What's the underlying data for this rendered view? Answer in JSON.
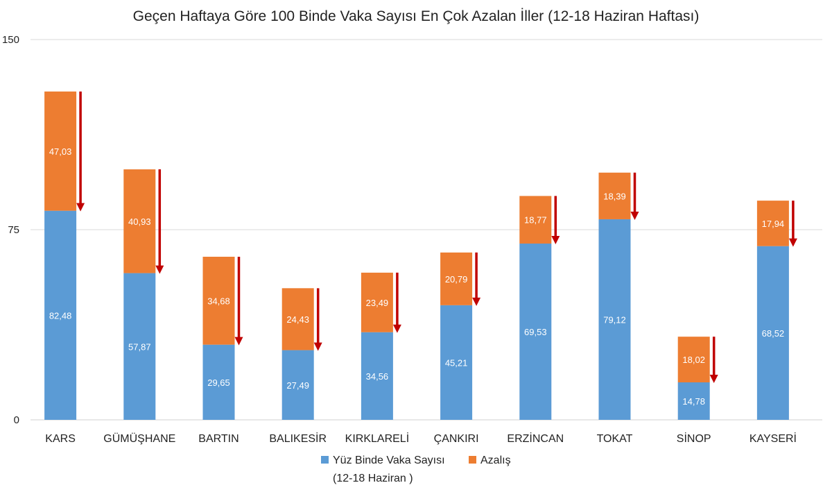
{
  "chart_data": {
    "type": "bar",
    "stacked": true,
    "title": "Geçen Haftaya Göre 100 Binde Vaka Sayısı En Çok Azalan İller (12-18 Haziran Haftası)",
    "xlabel": "",
    "ylabel": "",
    "ylim": [
      0,
      150
    ],
    "yticks": [
      "0",
      "75",
      "150"
    ],
    "grid": true,
    "legend_position": "bottom",
    "categories": [
      "KARS",
      "GÜMÜŞHANE",
      "BARTIN",
      "BALIKESİR",
      "KIRKLARELİ",
      "ÇANKIRI",
      "ERZİNCAN",
      "TOKAT",
      "SİNOP",
      "KAYSERİ"
    ],
    "series": [
      {
        "name": "Yüz Binde Vaka Sayısı (12-18 Haziran )",
        "legend_lines": [
          "Yüz Binde Vaka Sayısı",
          "(12-18 Haziran )"
        ],
        "color": "#5B9BD5",
        "values": [
          82.48,
          57.87,
          29.65,
          27.49,
          34.56,
          45.21,
          69.53,
          79.12,
          14.78,
          68.52
        ],
        "labels": [
          "82,48",
          "57,87",
          "29,65",
          "27,49",
          "34,56",
          "45,21",
          "69,53",
          "79,12",
          "14,78",
          "68,52"
        ]
      },
      {
        "name": "Azalış",
        "color": "#ED7D31",
        "values": [
          47.03,
          40.93,
          34.68,
          24.43,
          23.49,
          20.79,
          18.77,
          18.39,
          18.02,
          17.94
        ],
        "labels": [
          "47,03",
          "40,93",
          "34,68",
          "24,43",
          "23,49",
          "20,79",
          "18,77",
          "18,39",
          "18,02",
          "17,94"
        ]
      }
    ],
    "arrow_color": "#C00000"
  }
}
